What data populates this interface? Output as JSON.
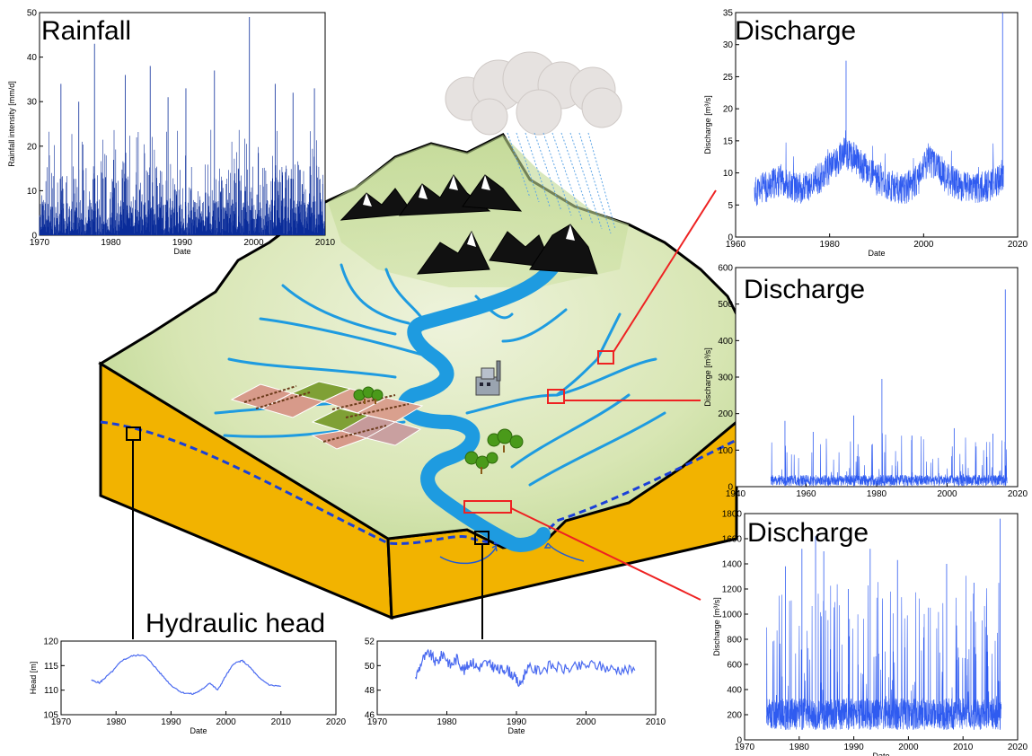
{
  "labels": {
    "rainfall_title": "Rainfall",
    "discharge_title_1": "Discharge",
    "discharge_title_2": "Discharge",
    "discharge_title_3": "Discharge",
    "hydraulic_head_title": "Hydraulic head"
  },
  "colors": {
    "rain_bars": "#0a2c9a",
    "discharge_line": "#2f5bf0",
    "head_line": "#4a6af0",
    "terrain_green": "#c6dc98",
    "soil_orange": "#f2b300",
    "river": "#1e9be0",
    "marker_red": "#ee2222",
    "water_table": "#1a40d8"
  },
  "chart_data": [
    {
      "id": "rainfall",
      "type": "bar",
      "title": "Rainfall",
      "xlabel": "Date",
      "ylabel": "Rainfall intensity [mm/d]",
      "xlim": [
        1970,
        2010
      ],
      "ylim": [
        0,
        50
      ],
      "xticks": [
        1970,
        1980,
        1990,
        2000,
        2010
      ],
      "yticks": [
        0,
        10,
        20,
        30,
        40,
        50
      ],
      "peaks": [
        {
          "x": 1977.7,
          "y": 43
        },
        {
          "x": 1999.4,
          "y": 49
        },
        {
          "x": 1985.5,
          "y": 38
        },
        {
          "x": 1982.0,
          "y": 36
        },
        {
          "x": 1994.5,
          "y": 37
        },
        {
          "x": 2003.0,
          "y": 34
        },
        {
          "x": 1990.5,
          "y": 33
        },
        {
          "x": 2008.5,
          "y": 33
        },
        {
          "x": 1973.0,
          "y": 34
        },
        {
          "x": 1975.5,
          "y": 30
        },
        {
          "x": 1988.0,
          "y": 31
        },
        {
          "x": 2005.5,
          "y": 32
        }
      ]
    },
    {
      "id": "discharge_top",
      "type": "line",
      "title": "Discharge",
      "xlabel": "Date",
      "ylabel": "Discharge [m³/s]",
      "xlim": [
        1960,
        2020
      ],
      "ylim": [
        0,
        35
      ],
      "xticks": [
        1960,
        1980,
        2000,
        2020
      ],
      "yticks": [
        0,
        5,
        10,
        15,
        20,
        25,
        30,
        35
      ],
      "x": [
        1964,
        1967,
        1970,
        1973,
        1976,
        1979,
        1981,
        1983,
        1985,
        1987,
        1990,
        1993,
        1996,
        1999,
        2001,
        2003,
        2005,
        2008,
        2011,
        2014,
        2016,
        2017
      ],
      "y": [
        7,
        8,
        9,
        7.5,
        8,
        10,
        11.5,
        13,
        12.5,
        11,
        9,
        8,
        7.5,
        9,
        12,
        11,
        9,
        8,
        7.5,
        8,
        9,
        10
      ]
    },
    {
      "id": "discharge_middle",
      "type": "line",
      "title": "Discharge",
      "xlabel": "",
      "ylabel": "Discharge [m³/s]",
      "xlim": [
        1940,
        2020
      ],
      "ylim": [
        0,
        600
      ],
      "xticks": [
        1940,
        1960,
        1980,
        2000,
        2020
      ],
      "yticks": [
        0,
        100,
        200,
        300,
        400,
        500,
        600
      ],
      "peaks": [
        {
          "x": 2016.5,
          "y": 540
        },
        {
          "x": 1981.5,
          "y": 295
        },
        {
          "x": 1973.5,
          "y": 195
        },
        {
          "x": 1954.0,
          "y": 180
        },
        {
          "x": 1962.0,
          "y": 150
        },
        {
          "x": 1990.0,
          "y": 140
        },
        {
          "x": 2002.0,
          "y": 160
        },
        {
          "x": 2013.0,
          "y": 145
        }
      ]
    },
    {
      "id": "discharge_bottom",
      "type": "line",
      "title": "Discharge",
      "xlabel": "Date",
      "ylabel": "Discharge [m³/s]",
      "xlim": [
        1970,
        2020
      ],
      "ylim": [
        0,
        1800
      ],
      "xticks": [
        1970,
        1980,
        1990,
        2000,
        2010,
        2020
      ],
      "yticks": [
        0,
        200,
        400,
        600,
        800,
        1000,
        1200,
        1400,
        1600,
        1800
      ],
      "peaks": [
        {
          "x": 2016.8,
          "y": 1760
        },
        {
          "x": 1983.0,
          "y": 1620
        },
        {
          "x": 1980.5,
          "y": 1520
        },
        {
          "x": 1984.5,
          "y": 1500
        },
        {
          "x": 1993.0,
          "y": 1520
        },
        {
          "x": 1998.0,
          "y": 1430
        },
        {
          "x": 2007.0,
          "y": 1400
        },
        {
          "x": 1977.5,
          "y": 1380
        },
        {
          "x": 1989.0,
          "y": 1200
        },
        {
          "x": 2012.0,
          "y": 1250
        }
      ]
    },
    {
      "id": "head_left",
      "type": "line",
      "title": "",
      "xlabel": "Date",
      "ylabel": "Head [m]",
      "xlim": [
        1970,
        2020
      ],
      "ylim": [
        105,
        120
      ],
      "xticks": [
        1970,
        1980,
        1990,
        2000,
        2010,
        2020
      ],
      "yticks": [
        105,
        110,
        115,
        120
      ],
      "x": [
        1975.5,
        1977,
        1978,
        1979.5,
        1981,
        1983,
        1985,
        1986.5,
        1988,
        1990,
        1992,
        1994,
        1995.5,
        1997,
        1998.5,
        2000,
        2001.5,
        2003,
        2004.5,
        2006,
        2008,
        2010
      ],
      "y": [
        112,
        111.5,
        112.5,
        114,
        116,
        117,
        117.2,
        115.5,
        113.5,
        111,
        109.5,
        109.2,
        110,
        111.5,
        110,
        113,
        115.5,
        116,
        114.5,
        112.5,
        111,
        110.8
      ]
    },
    {
      "id": "head_right",
      "type": "line",
      "title": "",
      "xlabel": "Date",
      "ylabel": "",
      "xlim": [
        1970,
        2010
      ],
      "ylim": [
        46,
        52
      ],
      "xticks": [
        1970,
        1980,
        1990,
        2000,
        2010
      ],
      "yticks": [
        46,
        48,
        50,
        52
      ],
      "x": [
        1975.5,
        1976.5,
        1977.5,
        1978.5,
        1979.5,
        1980.5,
        1981.5,
        1982.5,
        1983.5,
        1984.5,
        1985.5,
        1986.5,
        1987.5,
        1988.5,
        1989.5,
        1990.5,
        1991.5,
        1993,
        1995,
        1997,
        1999,
        2001,
        2003,
        2005,
        2007
      ],
      "y": [
        49,
        50.5,
        51,
        50.2,
        51,
        50,
        50.6,
        49.6,
        50.4,
        49.8,
        50.2,
        50,
        49.6,
        49.8,
        49.2,
        48.4,
        49.8,
        49.6,
        50,
        49.7,
        49.9,
        50.1,
        49.8,
        49.7,
        49.6
      ]
    }
  ]
}
